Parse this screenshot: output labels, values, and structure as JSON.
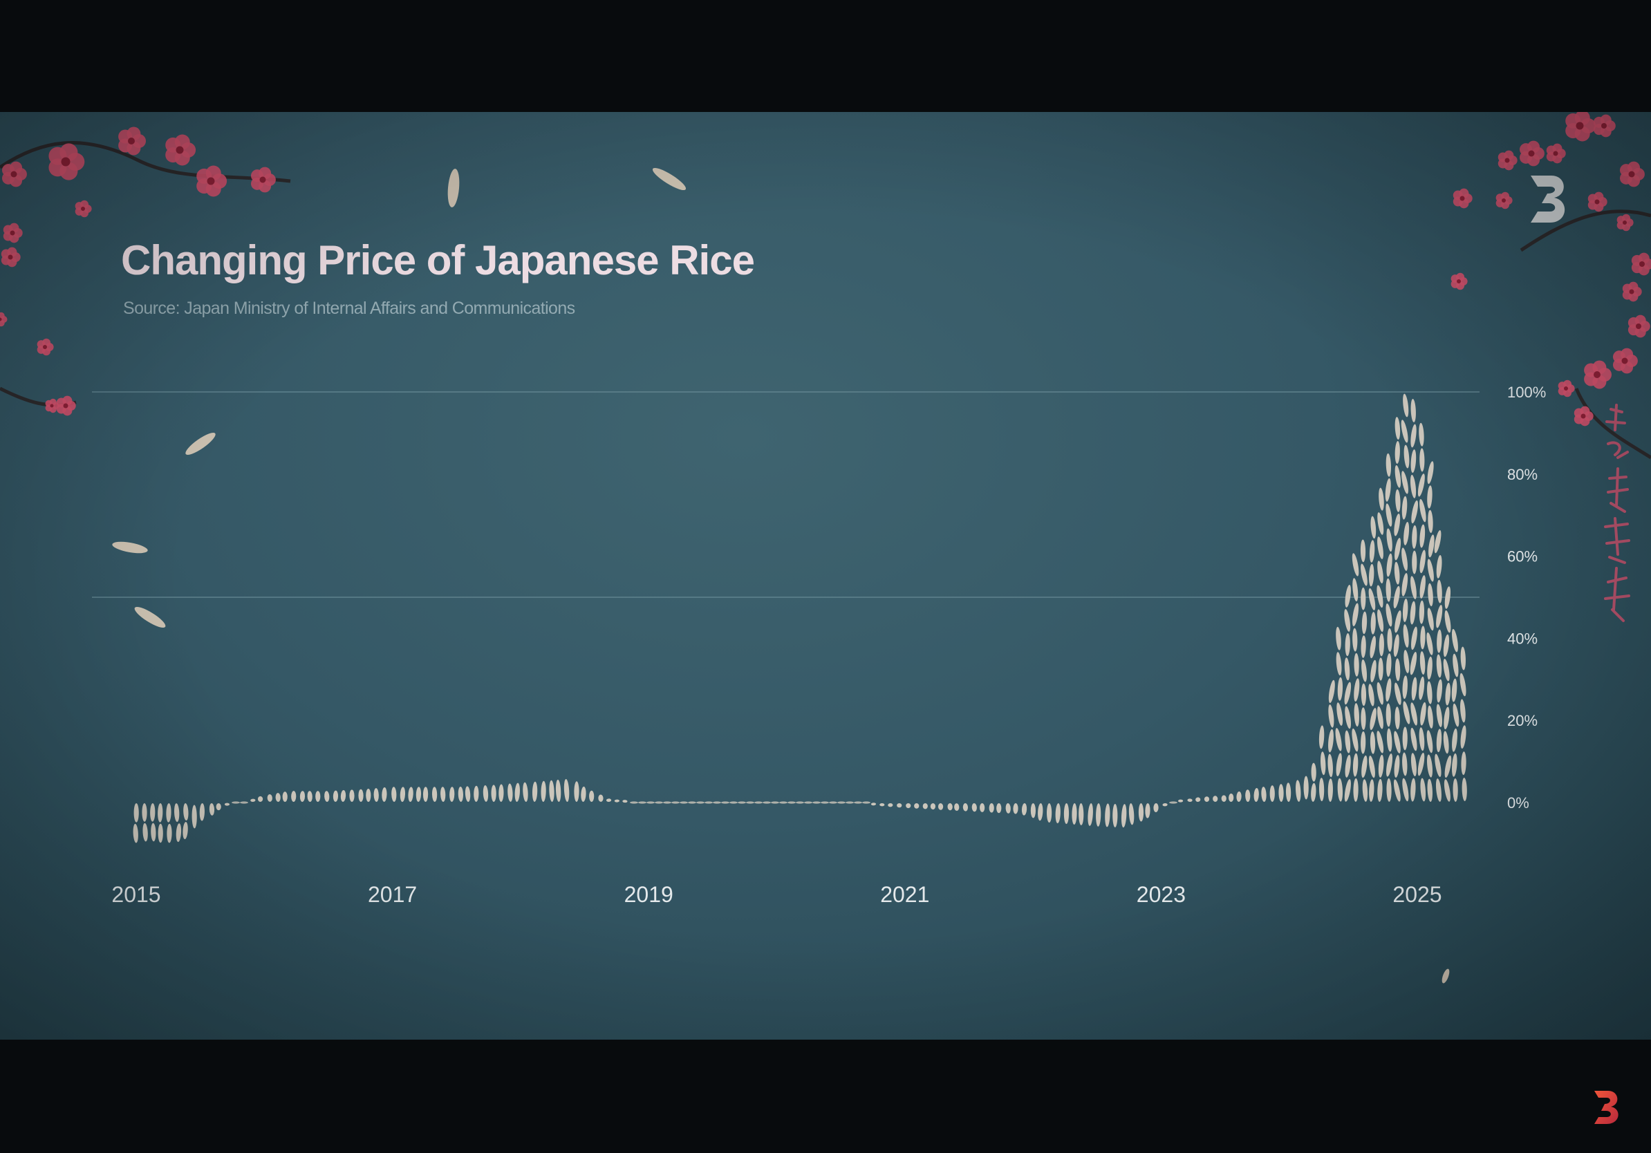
{
  "header": {
    "title": "Changing Price of Japanese Rice",
    "source": "Source: Japan Ministry of Internal Affairs and Communications"
  },
  "colors": {
    "background": "#38606e",
    "grain": "#d8cfc2",
    "gridline": "#6d8f9a",
    "blossom": "#d2506c",
    "text_light": "#e4e9eb"
  },
  "icons": {
    "brand_logo": "stylized-3-logo",
    "corner_logo": "stylized-3-logo-orange"
  },
  "chart_data": {
    "type": "area",
    "title": "Changing Price of Japanese Rice",
    "subtitle": "Source: Japan Ministry of Internal Affairs and Communications",
    "xlabel": "",
    "ylabel": "",
    "x_ticks": [
      "2015",
      "2017",
      "2019",
      "2021",
      "2023",
      "2025"
    ],
    "y_ticks": [
      "0%",
      "20%",
      "40%",
      "60%",
      "80%",
      "100%"
    ],
    "ylim": [
      -12,
      100
    ],
    "xlim": [
      2015,
      2025.5
    ],
    "grid": "horizontal lines at 50% and 100%",
    "y_axis_position": "right",
    "series": [
      {
        "x": [
          2015.0,
          2015.1,
          2015.2,
          2015.3,
          2015.4,
          2015.5,
          2015.7,
          2015.9,
          2016.0,
          2016.2,
          2016.5,
          2016.8,
          2017.0,
          2017.2,
          2017.5,
          2017.8,
          2018.0,
          2018.2,
          2018.4,
          2018.5,
          2018.7,
          2019.0,
          2019.3,
          2019.6,
          2020.0,
          2020.3,
          2020.6,
          2020.8,
          2021.0,
          2021.3,
          2021.6,
          2021.9,
          2022.1,
          2022.3,
          2022.5,
          2022.7,
          2022.9,
          2023.1,
          2023.3,
          2023.5,
          2023.7,
          2023.9,
          2024.0,
          2024.1,
          2024.2,
          2024.3,
          2024.4,
          2024.5,
          2024.6,
          2024.7,
          2024.8,
          2024.85,
          2024.9,
          2025.0,
          2025.1,
          2025.2,
          2025.3,
          2025.4
        ],
        "y": [
          -10,
          -9.5,
          -10,
          -10,
          -9,
          -5,
          -1,
          1,
          2,
          3,
          3,
          3.5,
          4,
          4,
          4,
          4.5,
          5,
          5.5,
          6,
          4,
          1,
          0,
          0,
          0.5,
          0.5,
          0.5,
          0.5,
          -1,
          -1.5,
          -2,
          -2.5,
          -3,
          -5,
          -5.5,
          -6,
          -6.5,
          -4,
          0.5,
          1.5,
          2,
          3.5,
          4.5,
          5,
          6,
          10,
          25,
          45,
          60,
          65,
          75,
          88,
          95,
          100,
          98,
          84,
          58,
          42,
          36
        ]
      }
    ]
  }
}
